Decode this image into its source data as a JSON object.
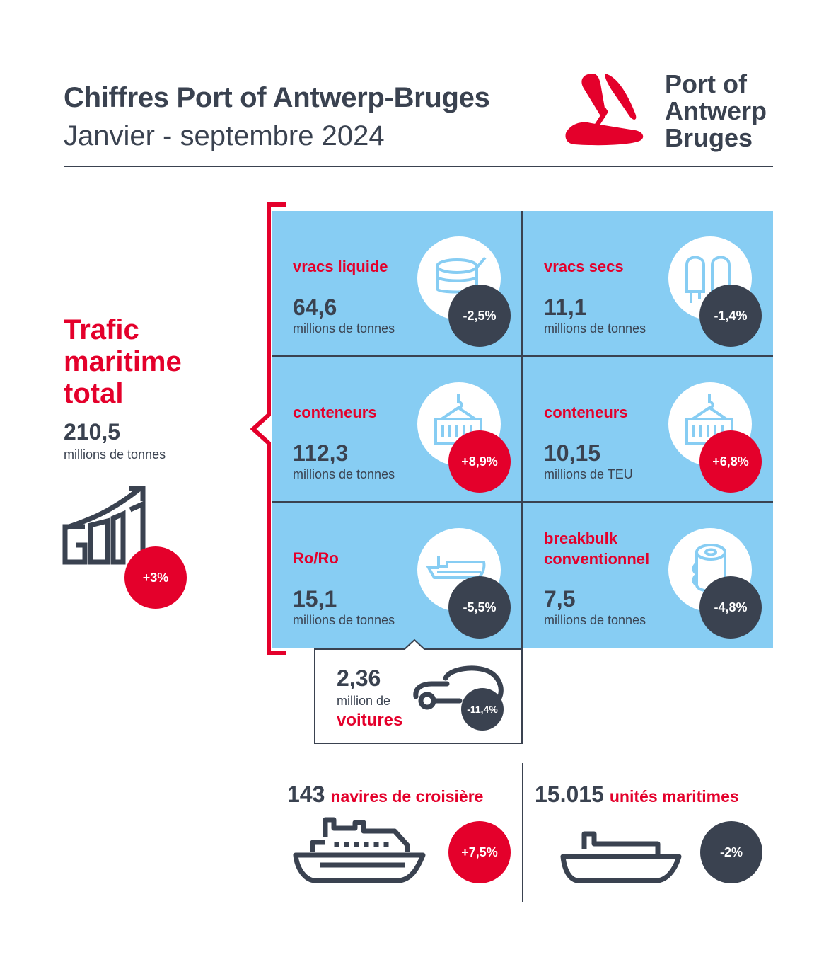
{
  "header": {
    "title": "Chiffres Port of Antwerp-Bruges",
    "subtitle": "Janvier - septembre 2024",
    "logo_text": [
      "Port of",
      "Antwerp",
      "Bruges"
    ]
  },
  "total": {
    "heading": [
      "Trafic",
      "maritime",
      "total"
    ],
    "value": "210,5",
    "unit": "millions de tonnes",
    "change": "+3%",
    "icon": "growth-chart-icon"
  },
  "cells": [
    {
      "label": [
        "vracs liquide"
      ],
      "value": "64,6",
      "unit": "millions de tonnes",
      "change": "-2,5%",
      "trend": "down",
      "icon": "liquid-tank-icon"
    },
    {
      "label": [
        "vracs secs"
      ],
      "value": "11,1",
      "unit": "millions de tonnes",
      "change": "-1,4%",
      "trend": "down",
      "icon": "silo-icon"
    },
    {
      "label": [
        "conteneurs"
      ],
      "value": "112,3",
      "unit": "millions de tonnes",
      "change": "+8,9%",
      "trend": "up",
      "icon": "container-crane-icon"
    },
    {
      "label": [
        "conteneurs"
      ],
      "value": "10,15",
      "unit": "millions de TEU",
      "change": "+6,8%",
      "trend": "up",
      "icon": "container-crane-icon"
    },
    {
      "label": [
        "Ro/Ro"
      ],
      "value": "15,1",
      "unit": "millions de tonnes",
      "change": "-5,5%",
      "trend": "down",
      "icon": "roro-ship-icon"
    },
    {
      "label": [
        "breakbulk",
        "conventionnel"
      ],
      "value": "7,5",
      "unit": "millions de tonnes",
      "change": "-4,8%",
      "trend": "down",
      "icon": "coil-icon"
    }
  ],
  "cars": {
    "value": "2,36",
    "unit": "million de",
    "label": "voitures",
    "change": "-11,4%",
    "icon": "car-icon"
  },
  "cruise": {
    "value": "143",
    "label": "navires de croisière",
    "change": "+7,5%",
    "icon": "cruise-ship-icon"
  },
  "units": {
    "value": "15.015",
    "label": "unités maritimes",
    "change": "-2%",
    "icon": "cargo-ship-icon"
  },
  "colors": {
    "red": "#e4002b",
    "dark": "#3a4250",
    "light_blue": "#87cdf3"
  }
}
